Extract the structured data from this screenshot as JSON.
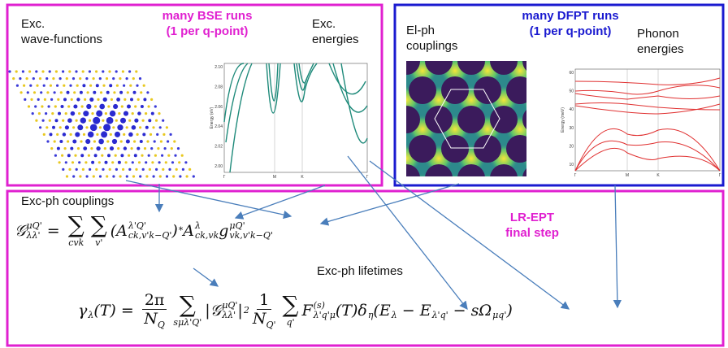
{
  "panels": {
    "bse": {
      "heading": [
        "many BSE runs",
        "(1 per q-point)"
      ],
      "wavefunctions": [
        "Exc.",
        "wave-functions"
      ],
      "energies": [
        "Exc.",
        "energies"
      ],
      "band_plot": {
        "y_label": "Energy (eV)",
        "yticks": [
          "2.10",
          "2.08",
          "2.06",
          "2.04",
          "2.02",
          "2.00"
        ],
        "xticks": [
          "Γ",
          "M",
          "K",
          "Γ"
        ]
      }
    },
    "dfpt": {
      "heading": [
        "many DFPT runs",
        "(1 per q-point)"
      ],
      "couplings": [
        "El-ph",
        "couplings"
      ],
      "phonons": [
        "Phonon",
        "energies"
      ],
      "phonon_plot": {
        "y_label": "Energy (meV)",
        "yticks": [
          "60",
          "50",
          "40",
          "30",
          "20",
          "10"
        ],
        "xticks": [
          "Γ",
          "M",
          "K",
          "Γ"
        ]
      }
    },
    "final": {
      "heading": [
        "LR-EPT",
        "final step"
      ],
      "couplings_label": "Exc-ph couplings",
      "lifetimes_label": "Exc-ph lifetimes",
      "equation_couplings": [
        {
          "t": "𝒢",
          "sup": "μQ'",
          "sub": "λλ'"
        },
        {
          "t": " = "
        },
        {
          "t": "∑",
          "under": "cvk"
        },
        {
          "t": "∑",
          "under": "v'"
        },
        {
          "t": "(A",
          "sup": "λ'Q'",
          "sub": "ck,v'k−Q'"
        },
        {
          "t": ")",
          "sup": "*"
        },
        {
          "t": "A",
          "sup": "λ",
          "sub": "ck,vk"
        },
        {
          "t": "g",
          "sup": "μQ'",
          "sub": "vk,v'k−Q'"
        }
      ],
      "equation_lifetimes": [
        {
          "t": "γ",
          "sub": "λ"
        },
        {
          "t": "(T) = "
        },
        {
          "num": "2π",
          "den": "N",
          "den_sub": "Q"
        },
        {
          "t": "∑",
          "under": "sμλ'Q'"
        },
        {
          "t": "|𝒢",
          "sup": "μQ'",
          "sub": "λλ'"
        },
        {
          "t": "|",
          "sup": "2"
        },
        {
          "num": "1",
          "den": "N",
          "den_sub": "Q'"
        },
        {
          "t": "∑",
          "under": "q'"
        },
        {
          "t": "F",
          "sup": "(s)",
          "sub": "λ'q'μ"
        },
        {
          "t": "(T)δ",
          "sub": "η"
        },
        {
          "t": "(E",
          "sub": "λ"
        },
        {
          "t": " − E",
          "sub": "λ'q'"
        },
        {
          "t": " − sΩ",
          "sub": "μq'"
        },
        {
          "t": ")"
        }
      ]
    }
  }
}
